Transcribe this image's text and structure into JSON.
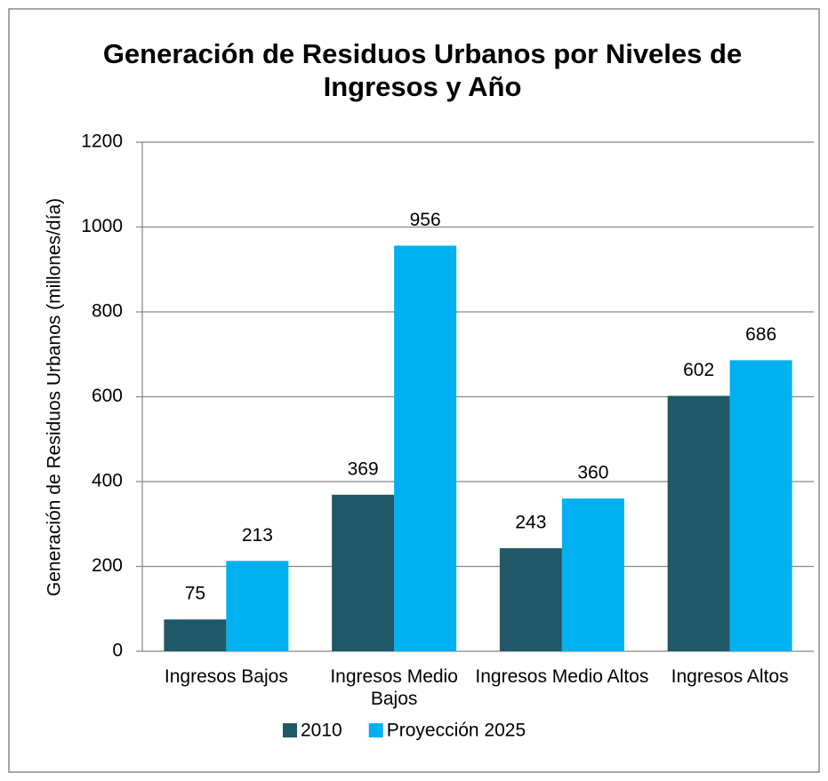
{
  "chart_data": {
    "type": "bar",
    "title": "Generación de Residuos Urbanos por Niveles de Ingresos y Año",
    "ylabel": "Generación de Residuos Urbanos (millones/día)",
    "categories": [
      "Ingresos Bajos",
      "Ingresos Medio Bajos",
      "Ingresos Medio Altos",
      "Ingresos Altos"
    ],
    "series": [
      {
        "name": "2010",
        "color": "#215868",
        "values": [
          75,
          369,
          243,
          602
        ]
      },
      {
        "name": "Proyección 2025",
        "color": "#00b0f0",
        "values": [
          213,
          956,
          360,
          686
        ]
      }
    ],
    "ylim": [
      0,
      1200
    ],
    "yticks": [
      0,
      200,
      400,
      600,
      800,
      1000,
      1200
    ],
    "grid": true,
    "legend": "bottom"
  }
}
